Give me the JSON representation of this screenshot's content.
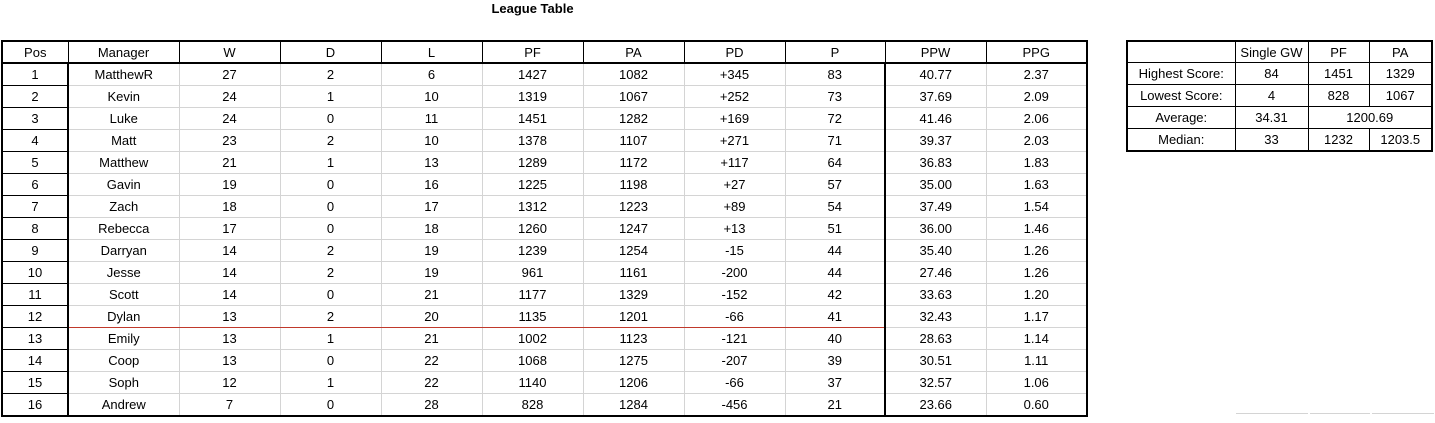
{
  "title": "League Table",
  "league": {
    "headers": [
      "Pos",
      "Manager",
      "W",
      "D",
      "L",
      "PF",
      "PA",
      "PD",
      "P",
      "PPW",
      "PPG"
    ],
    "rows": [
      [
        "1",
        "MatthewR",
        "27",
        "2",
        "6",
        "1427",
        "1082",
        "+345",
        "83",
        "40.77",
        "2.37"
      ],
      [
        "2",
        "Kevin",
        "24",
        "1",
        "10",
        "1319",
        "1067",
        "+252",
        "73",
        "37.69",
        "2.09"
      ],
      [
        "3",
        "Luke",
        "24",
        "0",
        "11",
        "1451",
        "1282",
        "+169",
        "72",
        "41.46",
        "2.06"
      ],
      [
        "4",
        "Matt",
        "23",
        "2",
        "10",
        "1378",
        "1107",
        "+271",
        "71",
        "39.37",
        "2.03"
      ],
      [
        "5",
        "Matthew",
        "21",
        "1",
        "13",
        "1289",
        "1172",
        "+117",
        "64",
        "36.83",
        "1.83"
      ],
      [
        "6",
        "Gavin",
        "19",
        "0",
        "16",
        "1225",
        "1198",
        "+27",
        "57",
        "35.00",
        "1.63"
      ],
      [
        "7",
        "Zach",
        "18",
        "0",
        "17",
        "1312",
        "1223",
        "+89",
        "54",
        "37.49",
        "1.54"
      ],
      [
        "8",
        "Rebecca",
        "17",
        "0",
        "18",
        "1260",
        "1247",
        "+13",
        "51",
        "36.00",
        "1.46"
      ],
      [
        "9",
        "Darryan",
        "14",
        "2",
        "19",
        "1239",
        "1254",
        "-15",
        "44",
        "35.40",
        "1.26"
      ],
      [
        "10",
        "Jesse",
        "14",
        "2",
        "19",
        "961",
        "1161",
        "-200",
        "44",
        "27.46",
        "1.26"
      ],
      [
        "11",
        "Scott",
        "14",
        "0",
        "21",
        "1177",
        "1329",
        "-152",
        "42",
        "33.63",
        "1.20"
      ],
      [
        "12",
        "Dylan",
        "13",
        "2",
        "20",
        "1135",
        "1201",
        "-66",
        "41",
        "32.43",
        "1.17"
      ],
      [
        "13",
        "Emily",
        "13",
        "1",
        "21",
        "1002",
        "1123",
        "-121",
        "40",
        "28.63",
        "1.14"
      ],
      [
        "14",
        "Coop",
        "13",
        "0",
        "22",
        "1068",
        "1275",
        "-207",
        "39",
        "30.51",
        "1.11"
      ],
      [
        "15",
        "Soph",
        "12",
        "1",
        "22",
        "1140",
        "1206",
        "-66",
        "37",
        "32.57",
        "1.06"
      ],
      [
        "16",
        "Andrew",
        "7",
        "0",
        "28",
        "828",
        "1284",
        "-456",
        "21",
        "23.66",
        "0.60"
      ]
    ]
  },
  "stats": {
    "headers": [
      "",
      "Single GW",
      "PF",
      "PA"
    ],
    "highest": {
      "label": "Highest Score:",
      "gw": "84",
      "pf": "1451",
      "pa": "1329"
    },
    "lowest": {
      "label": "Lowest Score:",
      "gw": "4",
      "pf": "828",
      "pa": "1067"
    },
    "average": {
      "label": "Average:",
      "gw": "34.31",
      "pfpa": "1200.69"
    },
    "median": {
      "label": "Median:",
      "gw": "33",
      "pf": "1232",
      "pa": "1203.5"
    }
  },
  "colors": {
    "cutoff_line": "#c0392b",
    "gridline": "#d4d4d4",
    "border": "#000000"
  }
}
